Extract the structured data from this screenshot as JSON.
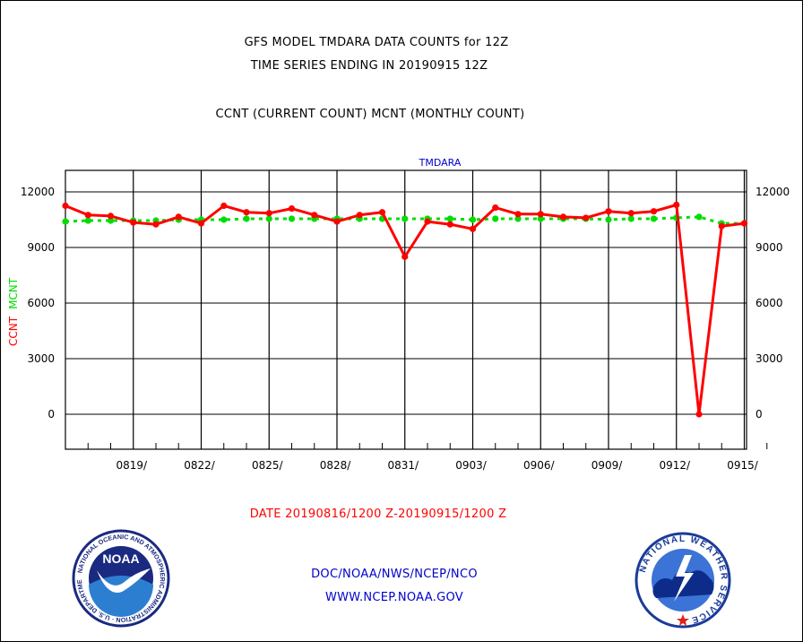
{
  "header": {
    "title_line1": "GFS MODEL TMDARA DATA COUNTS for 12Z",
    "title_line2": "TIME SERIES ENDING IN 20190915 12Z",
    "subtitle": "CCNT (CURRENT COUNT) MCNT (MONTHLY COUNT)"
  },
  "footer": {
    "date_range": "DATE 20190816/1200 Z-20190915/1200 Z",
    "org_line": "DOC/NOAA/NWS/NCEP/NCO",
    "url_line": "WWW.NCEP.NOAA.GOV"
  },
  "logos": {
    "noaa_text": "NOAA",
    "noaa_ring_text": "NATIONAL OCEANIC AND ATMOSPHERIC ADMINISTRATION · U.S. DEPARTMENT OF COMMERCE",
    "nws_ring_text": "NATIONAL WEATHER SERVICE"
  },
  "colors": {
    "ccnt": "#ff0000",
    "mcnt": "#00dd00",
    "text_blue": "#0000cc",
    "text_red": "#ff0000"
  },
  "chart_data": {
    "type": "line",
    "title": "TMDARA",
    "ylabel_ccnt": "CCNT",
    "ylabel_mcnt": "MCNT",
    "ylim": [
      -1900,
      13000
    ],
    "yticks": [
      0,
      3000,
      6000,
      9000,
      12000
    ],
    "grid": true,
    "xlim": [
      "0816",
      "0916"
    ],
    "x_tick_labels": [
      "0819/",
      "0822/",
      "0825/",
      "0828/",
      "0831/",
      "0903/",
      "0906/",
      "0909/",
      "0912/",
      "0915/"
    ],
    "x": [
      "0816",
      "0817",
      "0818",
      "0819",
      "0820",
      "0821",
      "0822",
      "0823",
      "0824",
      "0825",
      "0826",
      "0827",
      "0828",
      "0829",
      "0830",
      "0831",
      "0901",
      "0902",
      "0903",
      "0904",
      "0905",
      "0906",
      "0907",
      "0908",
      "0909",
      "0910",
      "0911",
      "0912",
      "0913",
      "0914",
      "0915",
      "0916"
    ],
    "series": [
      {
        "name": "CCNT",
        "values": [
          11250,
          10750,
          10700,
          10350,
          10250,
          10650,
          10300,
          11250,
          10900,
          10850,
          11100,
          10750,
          10400,
          10750,
          10900,
          8500,
          10400,
          10250,
          10000,
          11150,
          10800,
          10800,
          10650,
          10600,
          10950,
          10850,
          10950,
          11300,
          0,
          10150,
          10300,
          null
        ]
      },
      {
        "name": "MCNT",
        "values": [
          10400,
          10450,
          10450,
          10450,
          10450,
          10500,
          10500,
          10500,
          10550,
          10550,
          10550,
          10550,
          10550,
          10550,
          10550,
          10550,
          10550,
          10550,
          10500,
          10550,
          10550,
          10550,
          10550,
          10550,
          10500,
          10550,
          10550,
          10600,
          10650,
          10300,
          10300,
          null
        ]
      }
    ]
  }
}
